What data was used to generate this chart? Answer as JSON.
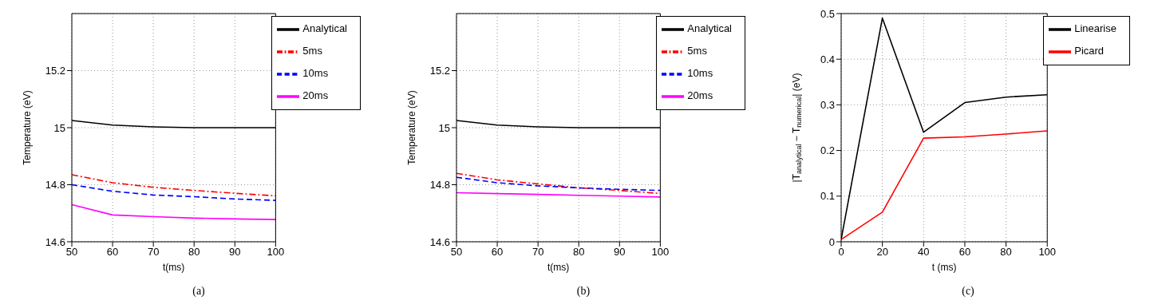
{
  "chart_data": [
    {
      "type": "line",
      "xlabel": "t(ms)",
      "ylabel": "Temperature (eV)",
      "x": [
        50,
        60,
        70,
        80,
        90,
        100
      ],
      "xlim": [
        50,
        100
      ],
      "xticks": [
        50,
        60,
        70,
        80,
        90,
        100
      ],
      "ylim": [
        14.6,
        15.4
      ],
      "yticks": [
        14.6,
        14.8,
        15,
        15.2
      ],
      "grid": true,
      "legend": "top right",
      "annotations": [
        "(a)"
      ],
      "series": [
        {
          "name": "Analytical",
          "color": "#000000",
          "line_style": "solid",
          "values": [
            15.025,
            15.009,
            15.003,
            15.0,
            15.0,
            15.0
          ]
        },
        {
          "name": "5ms",
          "color": "#ff0000",
          "line_style": "dashdot",
          "values": [
            14.835,
            14.807,
            14.791,
            14.78,
            14.77,
            14.761
          ]
        },
        {
          "name": "10ms",
          "color": "#0000ff",
          "line_style": "dashed",
          "values": [
            14.8,
            14.777,
            14.764,
            14.758,
            14.75,
            14.745
          ]
        },
        {
          "name": "20ms",
          "color": "#ff00ff",
          "line_style": "solid",
          "values": [
            14.73,
            14.694,
            14.688,
            14.683,
            14.68,
            14.678
          ]
        }
      ]
    },
    {
      "type": "line",
      "xlabel": "t(ms)",
      "ylabel": "Temperature (eV)",
      "x": [
        50,
        60,
        70,
        80,
        90,
        100
      ],
      "xlim": [
        50,
        100
      ],
      "xticks": [
        50,
        60,
        70,
        80,
        90,
        100
      ],
      "ylim": [
        14.6,
        15.4
      ],
      "yticks": [
        14.6,
        14.8,
        15,
        15.2
      ],
      "grid": true,
      "legend": "top right",
      "annotations": [
        "(b)"
      ],
      "series": [
        {
          "name": "Analytical",
          "color": "#000000",
          "line_style": "solid",
          "values": [
            15.025,
            15.009,
            15.003,
            15.0,
            15.0,
            15.0
          ]
        },
        {
          "name": "5ms",
          "color": "#ff0000",
          "line_style": "dashdot",
          "values": [
            14.84,
            14.817,
            14.803,
            14.789,
            14.78,
            14.769
          ]
        },
        {
          "name": "10ms",
          "color": "#0000ff",
          "line_style": "dashed",
          "values": [
            14.826,
            14.807,
            14.796,
            14.789,
            14.784,
            14.78
          ]
        },
        {
          "name": "20ms",
          "color": "#ff00ff",
          "line_style": "solid",
          "values": [
            14.772,
            14.769,
            14.766,
            14.763,
            14.76,
            14.757
          ]
        }
      ]
    },
    {
      "type": "line",
      "xlabel": "t (ms)",
      "ylabel": "|T$_{analytical}$ − T$_{numerical}$| (eV)",
      "x": [
        0,
        20,
        40,
        60,
        80,
        100
      ],
      "xlim": [
        0,
        100
      ],
      "xticks": [
        0,
        20,
        40,
        60,
        80,
        100
      ],
      "ylim": [
        0,
        0.5
      ],
      "yticks": [
        0,
        0.1,
        0.2,
        0.3,
        0.4,
        0.5
      ],
      "grid": true,
      "legend": "top right",
      "annotations": [
        "(c)"
      ],
      "series": [
        {
          "name": "Linearise",
          "color": "#000000",
          "line_style": "solid",
          "values": [
            0.005,
            0.49,
            0.24,
            0.305,
            0.317,
            0.322
          ]
        },
        {
          "name": "Picard",
          "color": "#ff0000",
          "line_style": "solid",
          "values": [
            0.005,
            0.065,
            0.227,
            0.23,
            0.236,
            0.243
          ]
        }
      ]
    }
  ]
}
